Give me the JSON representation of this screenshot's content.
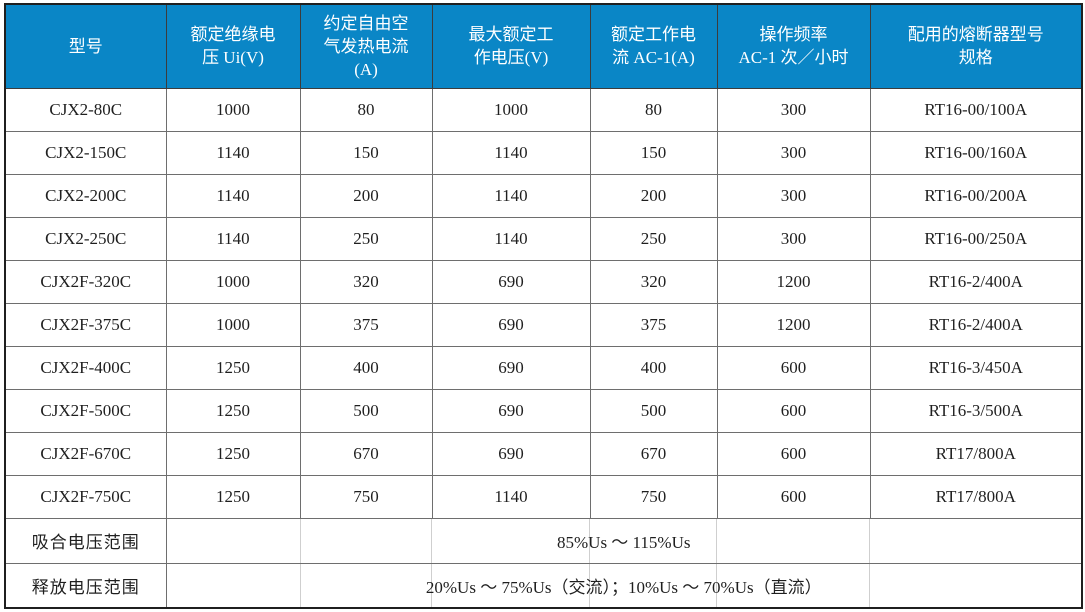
{
  "table": {
    "columns": [
      "型号",
      "额定绝缘电\n压 Ui(V)",
      "约定自由空\n气发热电流\n(A)",
      "最大额定工\n作电压(V)",
      "额定工作电\n流 AC-1(A)",
      "操作频率\nAC-1 次／小时",
      "配用的熔断器型号\n规格"
    ],
    "rows": [
      [
        "CJX2-80C",
        "1000",
        "80",
        "1000",
        "80",
        "300",
        "RT16-00/100A"
      ],
      [
        "CJX2-150C",
        "1140",
        "150",
        "1140",
        "150",
        "300",
        "RT16-00/160A"
      ],
      [
        "CJX2-200C",
        "1140",
        "200",
        "1140",
        "200",
        "300",
        "RT16-00/200A"
      ],
      [
        "CJX2-250C",
        "1140",
        "250",
        "1140",
        "250",
        "300",
        "RT16-00/250A"
      ],
      [
        "CJX2F-320C",
        "1000",
        "320",
        "690",
        "320",
        "1200",
        "RT16-2/400A"
      ],
      [
        "CJX2F-375C",
        "1000",
        "375",
        "690",
        "375",
        "1200",
        "RT16-2/400A"
      ],
      [
        "CJX2F-400C",
        "1250",
        "400",
        "690",
        "400",
        "600",
        "RT16-3/450A"
      ],
      [
        "CJX2F-500C",
        "1250",
        "500",
        "690",
        "500",
        "600",
        "RT16-3/500A"
      ],
      [
        "CJX2F-670C",
        "1250",
        "670",
        "690",
        "670",
        "600",
        "RT17/800A"
      ],
      [
        "CJX2F-750C",
        "1250",
        "750",
        "1140",
        "750",
        "600",
        "RT17/800A"
      ]
    ],
    "footer_rows": [
      {
        "label": "吸合电压范围",
        "value": "85%Us ～ 115%Us"
      },
      {
        "label": "释放电压范围",
        "value": "20%Us ～ 75%Us（交流）；10%Us ～ 70%Us（直流）"
      }
    ]
  },
  "colors": {
    "header_bg": "#0a86c6",
    "header_text": "#ffffff",
    "body_text": "#1f1f1f",
    "grid_line": "#6e6e6e",
    "outer_border": "#1f1f1f",
    "faint_line": "#cfcfcf"
  }
}
